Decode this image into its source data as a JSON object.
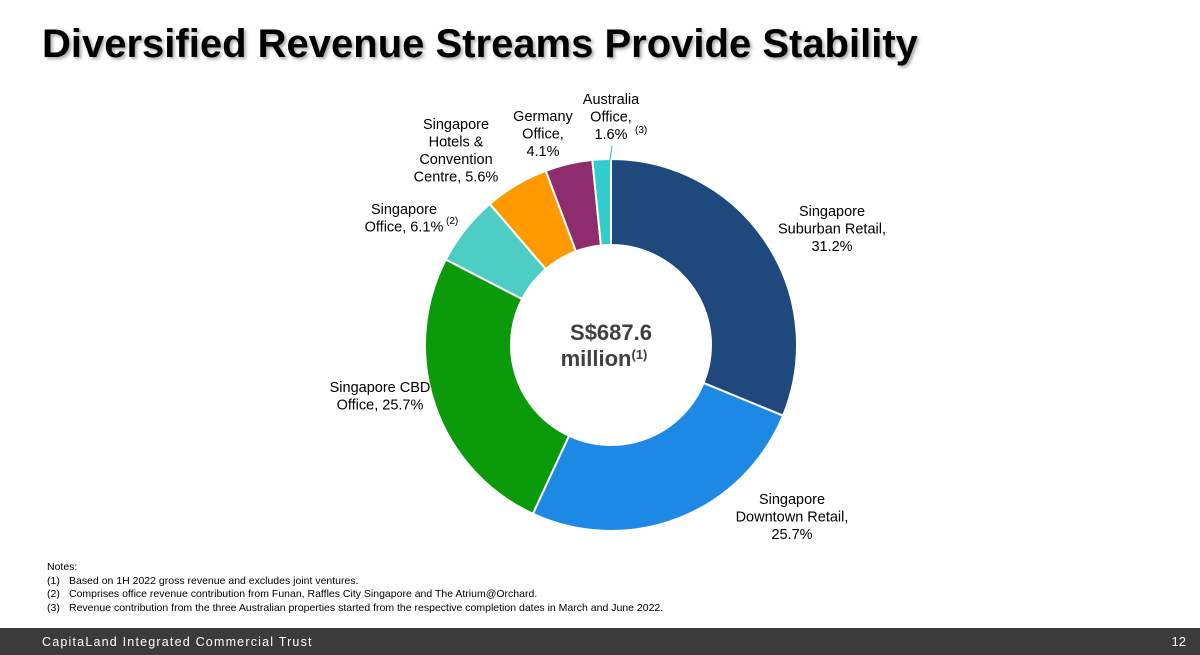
{
  "page": {
    "title": "Diversified Revenue Streams Provide Stability",
    "footer_company": "CapitaLand Integrated Commercial Trust",
    "page_number": "12"
  },
  "chart_data": {
    "type": "pie",
    "center_label": [
      "S$687.6",
      "million"
    ],
    "center_note": "(1)",
    "slices": [
      {
        "label": [
          "Singapore",
          "Suburban Retail,",
          "31.2%"
        ],
        "value": 31.2,
        "color": "#1F497D"
      },
      {
        "label": [
          "Singapore",
          "Downtown Retail,",
          "25.7%"
        ],
        "value": 25.7,
        "color": "#1E88E5"
      },
      {
        "label": [
          "Singapore CBD",
          "Office, 25.7%"
        ],
        "value": 25.7,
        "color": "#0A9A0A"
      },
      {
        "label": [
          "Singapore",
          "Office, 6.1%"
        ],
        "note": "(2)",
        "value": 6.1,
        "color": "#4ECDC4"
      },
      {
        "label": [
          "Singapore",
          "Hotels &",
          "Convention",
          "Centre, 5.6%"
        ],
        "value": 5.6,
        "color": "#FF9900"
      },
      {
        "label": [
          "Germany",
          "Office,",
          "4.1%"
        ],
        "value": 4.1,
        "color": "#8E2C6E"
      },
      {
        "label": [
          "Australia",
          "Office,",
          "1.6%"
        ],
        "note": "(3)",
        "value": 1.6,
        "color": "#33CCCC"
      }
    ]
  },
  "notes": {
    "heading": "Notes:",
    "items": [
      {
        "num": "(1)",
        "text": "Based on 1H 2022 gross revenue and excludes joint ventures."
      },
      {
        "num": "(2)",
        "text": "Comprises office revenue contribution from Funan, Raffles City Singapore and The Atrium@Orchard."
      },
      {
        "num": "(3)",
        "text": "Revenue contribution from the three Australian properties started from the respective completion dates in March and June 2022."
      }
    ]
  }
}
